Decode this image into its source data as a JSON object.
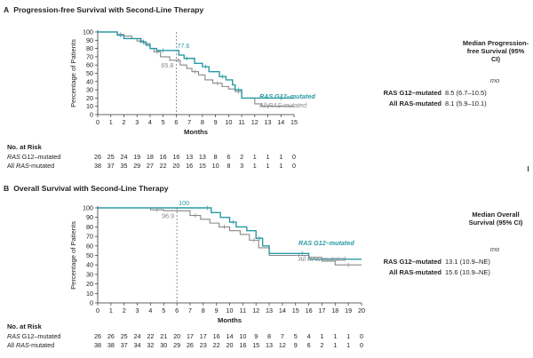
{
  "chart_data": [
    {
      "type": "line",
      "panel": "A",
      "title": "Progression-free Survival with Second-Line Therapy",
      "xlabel": "Months",
      "ylabel": "Percentage of Patients",
      "xlim": [
        0,
        15
      ],
      "ylim": [
        0,
        100
      ],
      "xticks": [
        "0",
        "1",
        "2",
        "3",
        "4",
        "5",
        "6",
        "7",
        "8",
        "9",
        "10",
        "11",
        "12",
        "13",
        "14",
        "15"
      ],
      "yticks": [
        "0",
        "10",
        "20",
        "30",
        "40",
        "50",
        "60",
        "70",
        "80",
        "90",
        "100"
      ],
      "marker_x": 6,
      "annotations": [
        {
          "text": "77.6",
          "x": 6,
          "y": 77.6,
          "color": "#2a9aa6"
        },
        {
          "text": "65.8",
          "x": 6,
          "y": 65.8,
          "color": "#888888"
        }
      ],
      "series": [
        {
          "name": "RAS G12–mutated",
          "color": "#2a9aa6",
          "width": 1.4,
          "x": [
            0,
            1.5,
            2.0,
            2.8,
            3.3,
            3.7,
            4.0,
            4.5,
            5.5,
            6.2,
            6.6,
            7.0,
            7.4,
            8.0,
            8.5,
            9.0,
            9.3,
            9.8,
            10.3,
            10.5,
            11.0,
            12.5,
            13.0,
            15.0
          ],
          "y": [
            100,
            96,
            92,
            92,
            88,
            84,
            80,
            77.6,
            77.6,
            72,
            68,
            68,
            62,
            58,
            52,
            52,
            46,
            42,
            36,
            30,
            20,
            20,
            20,
            20
          ]
        },
        {
          "name": "All RAS-mutated",
          "color": "#888888",
          "width": 1.1,
          "x": [
            0,
            1.5,
            2.0,
            2.6,
            3.0,
            3.5,
            4.0,
            4.3,
            4.8,
            5.5,
            6.0,
            6.3,
            6.8,
            7.2,
            7.7,
            8.2,
            8.8,
            9.5,
            10.0,
            10.5,
            11.0,
            12.0,
            12.5,
            13.5,
            15.0
          ],
          "y": [
            100,
            97,
            95,
            92,
            89,
            86,
            80,
            76,
            70,
            65.8,
            65.8,
            60,
            56,
            52,
            48,
            42,
            38,
            34,
            31,
            28,
            20,
            13,
            10,
            10,
            10
          ]
        }
      ],
      "risk_table": {
        "title": "No. at Risk",
        "rows": [
          {
            "group": "RAS",
            "label": " G12–mutated",
            "values": [
              "26",
              "25",
              "24",
              "19",
              "18",
              "16",
              "16",
              "13",
              "13",
              "8",
              "6",
              "2",
              "1",
              "1",
              "1",
              "0"
            ]
          },
          {
            "group": "All ",
            "label": "RAS",
            "suffix": "-mutated",
            "values": [
              "38",
              "37",
              "35",
              "29",
              "27",
              "22",
              "20",
              "16",
              "15",
              "10",
              "8",
              "3",
              "1",
              "1",
              "1",
              "0"
            ]
          }
        ]
      },
      "median": {
        "heading": "Median Progression-free Survival (95% CI)",
        "unit": "mo",
        "rows": [
          {
            "group": "RAS G12–mutated",
            "value": "8.5 (6.7–10.5)"
          },
          {
            "group": "All RAS-mutated",
            "value": "8.1 (5.9–10.1)"
          }
        ]
      }
    },
    {
      "type": "line",
      "panel": "B",
      "title": "Overall Survival with Second-Line Therapy",
      "xlabel": "Months",
      "ylabel": "Percentage of Patients",
      "xlim": [
        0,
        20
      ],
      "ylim": [
        0,
        100
      ],
      "xticks": [
        "0",
        "1",
        "2",
        "3",
        "4",
        "5",
        "6",
        "7",
        "8",
        "9",
        "10",
        "11",
        "12",
        "13",
        "14",
        "15",
        "16",
        "17",
        "18",
        "19",
        "20"
      ],
      "yticks": [
        "0",
        "10",
        "20",
        "30",
        "40",
        "50",
        "60",
        "70",
        "80",
        "90",
        "100"
      ],
      "marker_x": 6,
      "annotations": [
        {
          "text": "100",
          "x": 6,
          "y": 100,
          "color": "#2a9aa6"
        },
        {
          "text": "96.9",
          "x": 6,
          "y": 96.9,
          "color": "#888888"
        }
      ],
      "series": [
        {
          "name": "RAS G12–mutated",
          "color": "#2a9aa6",
          "width": 1.4,
          "x": [
            0,
            8.0,
            8.6,
            9.3,
            10.0,
            10.5,
            11.3,
            12.0,
            12.5,
            13.0,
            15.0,
            16.0,
            18.0,
            20.0
          ],
          "y": [
            100,
            100,
            95,
            90,
            85,
            80,
            76,
            68,
            60,
            52,
            52,
            46,
            46,
            46
          ]
        },
        {
          "name": "All RAS-mutated",
          "color": "#888888",
          "width": 1.1,
          "x": [
            0,
            4.0,
            5.0,
            6.0,
            7.0,
            7.8,
            8.5,
            9.2,
            10.0,
            10.8,
            11.5,
            12.2,
            13.0,
            14.5,
            16.0,
            17.0,
            18.0,
            20.0
          ],
          "y": [
            100,
            98,
            97,
            96.9,
            92,
            88,
            84,
            80,
            76,
            72,
            66,
            58,
            50,
            50,
            48,
            44,
            40,
            40
          ]
        }
      ],
      "risk_table": {
        "title": "No. at Risk",
        "rows": [
          {
            "group": "RAS",
            "label": " G12–mutated",
            "values": [
              "26",
              "26",
              "25",
              "24",
              "22",
              "21",
              "20",
              "17",
              "17",
              "16",
              "14",
              "10",
              "9",
              "8",
              "7",
              "5",
              "4",
              "1",
              "1",
              "1",
              "0"
            ]
          },
          {
            "group": "All ",
            "label": "RAS",
            "suffix": "-mutated",
            "values": [
              "38",
              "38",
              "37",
              "34",
              "32",
              "30",
              "29",
              "26",
              "23",
              "22",
              "20",
              "16",
              "15",
              "13",
              "12",
              "9",
              "6",
              "2",
              "1",
              "1",
              "0"
            ]
          }
        ]
      },
      "median": {
        "heading": "Median Overall Survival (95% CI)",
        "unit": "mo",
        "rows": [
          {
            "group": "RAS G12–mutated",
            "value": "13.1 (10.9–NE)"
          },
          {
            "group": "All RAS-mutated",
            "value": "15.6 (10.9–NE)"
          }
        ]
      }
    }
  ]
}
